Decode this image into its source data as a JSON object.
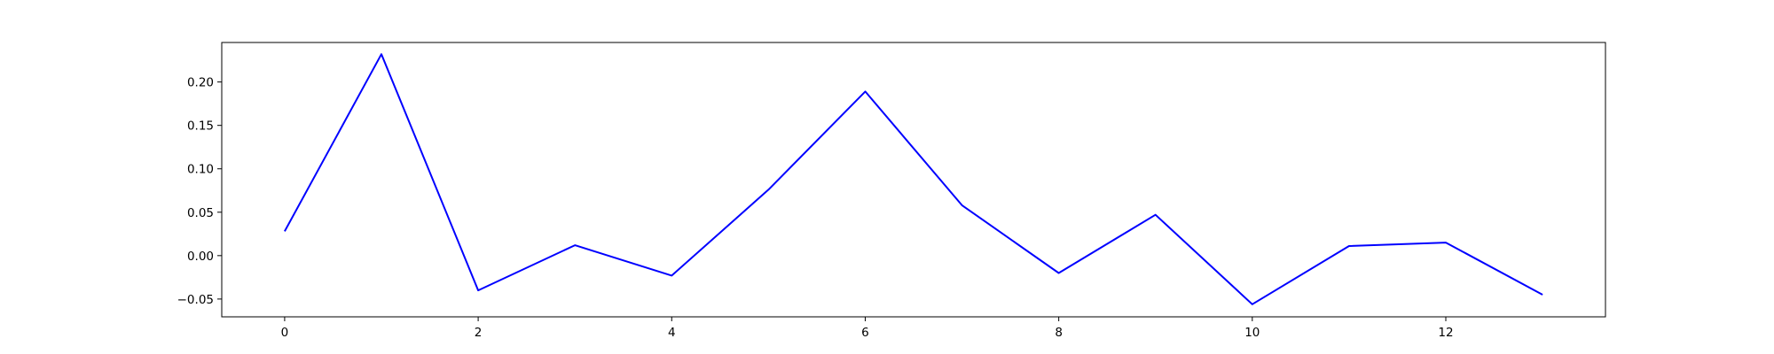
{
  "chart_data": {
    "type": "line",
    "title": "",
    "xlabel": "",
    "ylabel": "",
    "xlim": [
      -0.65,
      13.65
    ],
    "ylim": [
      -0.0705,
      0.2455
    ],
    "grid": false,
    "legend": "none",
    "x_ticks": [
      0,
      2,
      4,
      6,
      8,
      10,
      12
    ],
    "x_tick_labels": [
      "0",
      "2",
      "4",
      "6",
      "8",
      "10",
      "12"
    ],
    "y_ticks": [
      -0.05,
      0.0,
      0.05,
      0.1,
      0.15,
      0.2
    ],
    "y_tick_labels": [
      "−0.05",
      "0.00",
      "0.05",
      "0.10",
      "0.15",
      "0.20"
    ],
    "series": [
      {
        "color": "#0000ff",
        "x": [
          0,
          1,
          2,
          3,
          4,
          5,
          6,
          7,
          8,
          9,
          10,
          11,
          12,
          13
        ],
        "values": [
          0.028,
          0.232,
          -0.04,
          0.012,
          -0.023,
          0.076,
          0.189,
          0.058,
          -0.02,
          0.047,
          -0.056,
          0.011,
          0.015,
          -0.045
        ]
      }
    ]
  }
}
